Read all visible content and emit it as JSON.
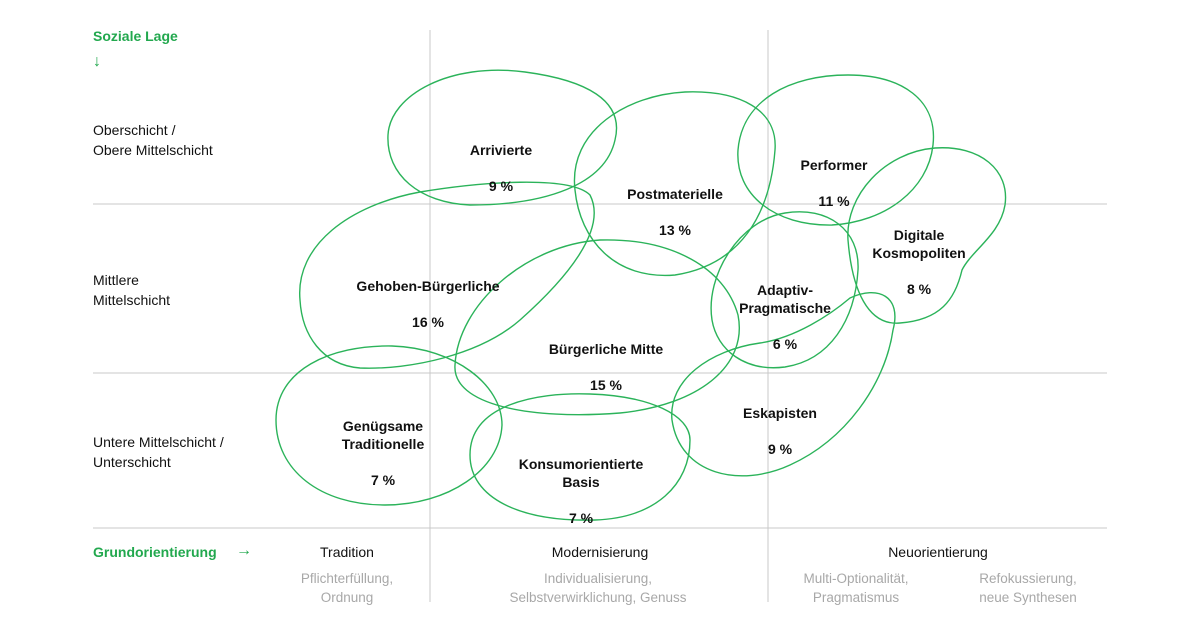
{
  "y_axis": {
    "label": "Soziale Lage",
    "arrow": "↓"
  },
  "x_axis": {
    "label": "Grundorientierung",
    "arrow": "→"
  },
  "rows": [
    {
      "label": "Oberschicht /\nObere Mittelschicht"
    },
    {
      "label": "Mittlere\nMittelschicht"
    },
    {
      "label": "Untere Mittelschicht /\nUnterschicht"
    }
  ],
  "columns": [
    {
      "title": "Tradition",
      "subtitles": [
        "Pflichterfüllung,\nOrdnung"
      ]
    },
    {
      "title": "Modernisierung",
      "subtitles": [
        "Individualisierung,\nSelbstverwirklichung, Genuss"
      ]
    },
    {
      "title": "Neuorientierung",
      "subtitles": [
        "Multi-Optionalität,\nPragmatismus",
        "Refokussierung,\nneue Synthesen"
      ]
    }
  ],
  "milieus": [
    {
      "name": "Arrivierte",
      "share": "9 %"
    },
    {
      "name": "Postmaterielle",
      "share": "13 %"
    },
    {
      "name": "Performer",
      "share": "11 %"
    },
    {
      "name": "Digitale\nKosmopoliten",
      "share": "8 %"
    },
    {
      "name": "Gehoben-Bürgerliche",
      "share": "16 %"
    },
    {
      "name": "Adaptiv-\nPragmatische",
      "share": "6 %"
    },
    {
      "name": "Bürgerliche Mitte",
      "share": "15 %"
    },
    {
      "name": "Genügsame\nTraditionelle",
      "share": "7 %"
    },
    {
      "name": "Konsumorientierte\nBasis",
      "share": "7 %"
    },
    {
      "name": "Eskapisten",
      "share": "9 %"
    }
  ],
  "colors": {
    "accent": "#22a84e",
    "outline": "#2bb35a",
    "grid": "#c8c8c8",
    "muted": "#a8a8a8"
  }
}
